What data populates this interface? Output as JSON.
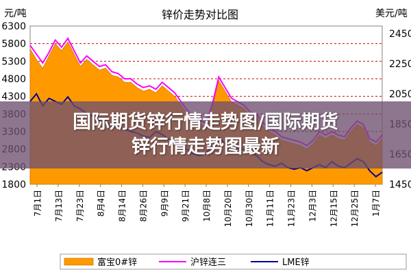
{
  "banner": {
    "line1": "国际期货锌行情走势图/国际期货",
    "line2": "锌行情走势图最新"
  },
  "chart_data": {
    "type": "area",
    "title": "锌价走势对比图",
    "left_unit": "元/吨",
    "right_unit": "美元/吨",
    "left_ylim": [
      1800,
      6300
    ],
    "right_ylim": [
      1450,
      2500
    ],
    "left_ticks": [
      1800,
      2300,
      2800,
      3300,
      3800,
      4300,
      4800,
      5300,
      5800,
      6300
    ],
    "right_ticks": [
      1450,
      1650,
      1850,
      2050,
      2250,
      2450
    ],
    "x_ticks": [
      "7月1日",
      "7月13日",
      "7月23日",
      "8月4日",
      "8月14日",
      "8月26日",
      "9月9日",
      "9月21日",
      "10月8日",
      "10月20日",
      "10月30日",
      "11月11日",
      "11月23日",
      "12月3日",
      "12月15日",
      "12月25日",
      "1月7日"
    ],
    "colors": {
      "fubao": "#ff9900",
      "shanghai": "#ff00ff",
      "lme": "#000099",
      "grid": "#cc0000"
    },
    "series": [
      {
        "name": "富宝0#锌",
        "axis": "left",
        "values": [
          5650,
          5350,
          5100,
          5450,
          5800,
          5600,
          5850,
          5500,
          5150,
          5350,
          5200,
          5050,
          5100,
          4900,
          4850,
          4700,
          4700,
          4550,
          4450,
          4500,
          4400,
          4600,
          4450,
          4300,
          4050,
          3800,
          3600,
          3500,
          3450,
          4000,
          4750,
          4450,
          4150,
          4050,
          3950,
          3750,
          3700,
          3450,
          3300,
          3200,
          3050,
          3000,
          2950,
          2900,
          2800,
          2950,
          3200,
          3100,
          3200,
          3100,
          3050,
          3300,
          3500,
          3400,
          3000,
          2900,
          3100
        ]
      },
      {
        "name": "沪锌连三",
        "axis": "left",
        "values": [
          5750,
          5500,
          5250,
          5550,
          5900,
          5700,
          5950,
          5600,
          5250,
          5450,
          5300,
          5150,
          5200,
          5000,
          4950,
          4800,
          4800,
          4650,
          4550,
          4600,
          4500,
          4700,
          4550,
          4400,
          4150,
          3900,
          3700,
          3600,
          3550,
          4100,
          4850,
          4550,
          4250,
          4150,
          4050,
          3850,
          3800,
          3550,
          3400,
          3300,
          3150,
          3100,
          3050,
          3000,
          2900,
          3050,
          3300,
          3200,
          3300,
          3200,
          3150,
          3400,
          3600,
          3500,
          3100,
          3000,
          3200
        ]
      },
      {
        "name": "LME锌",
        "axis": "right",
        "values": [
          2000,
          2050,
          1970,
          2020,
          2000,
          1980,
          2030,
          1970,
          1950,
          1920,
          1900,
          1870,
          1860,
          1840,
          1830,
          1820,
          1800,
          1790,
          1770,
          1760,
          1800,
          1780,
          1750,
          1730,
          1700,
          1680,
          1650,
          1640,
          1660,
          1700,
          1760,
          1720,
          1700,
          1690,
          1680,
          1660,
          1640,
          1600,
          1580,
          1570,
          1590,
          1560,
          1550,
          1560,
          1540,
          1560,
          1580,
          1560,
          1600,
          1570,
          1560,
          1590,
          1620,
          1600,
          1540,
          1500,
          1530
        ]
      }
    ]
  }
}
